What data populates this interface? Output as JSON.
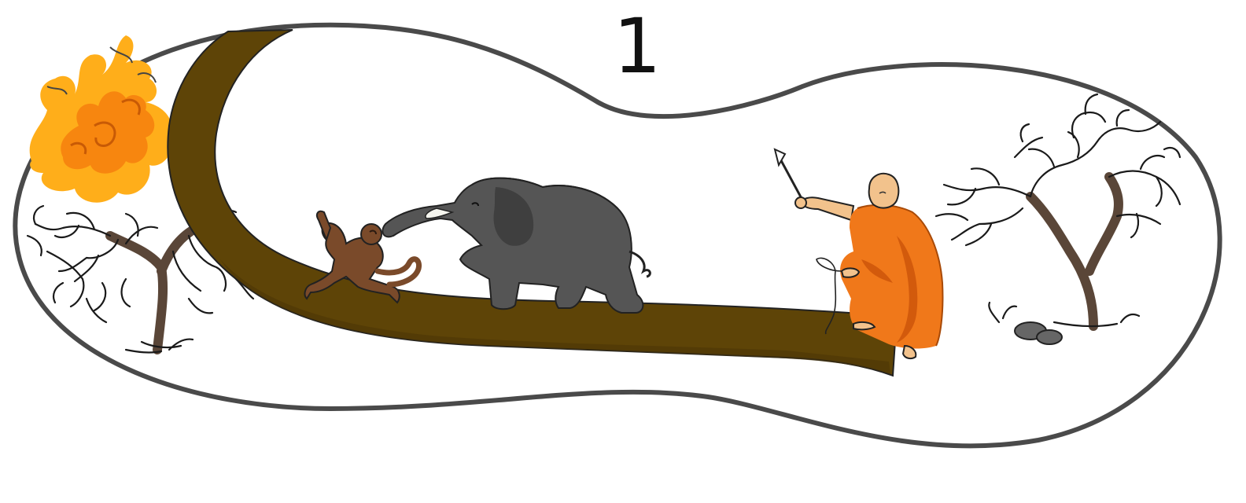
{
  "panel": {
    "number": "1"
  },
  "colors": {
    "frame_stroke": "#4a4a4a",
    "trunk": "#5e4407",
    "trunk_dark": "#4a3505",
    "fire_outer": "#ffae1a",
    "fire_inner": "#f7860f",
    "elephant": "#555555",
    "elephant_dark": "#3f3f3f",
    "monkey": "#7a4a2a",
    "robe": "#f0781a",
    "robe_dark": "#d25a0c",
    "skin": "#f2c28c",
    "tree_branch": "#1a1a1a",
    "tree_trunk": "#5a4638",
    "rock": "#666666"
  },
  "scene": {
    "elements": [
      "oval-frame",
      "burning-tree",
      "bare-tree-left",
      "fallen-tree-trunk",
      "monkey",
      "elephant",
      "seated-monk",
      "bare-tree-right",
      "rocks"
    ]
  }
}
